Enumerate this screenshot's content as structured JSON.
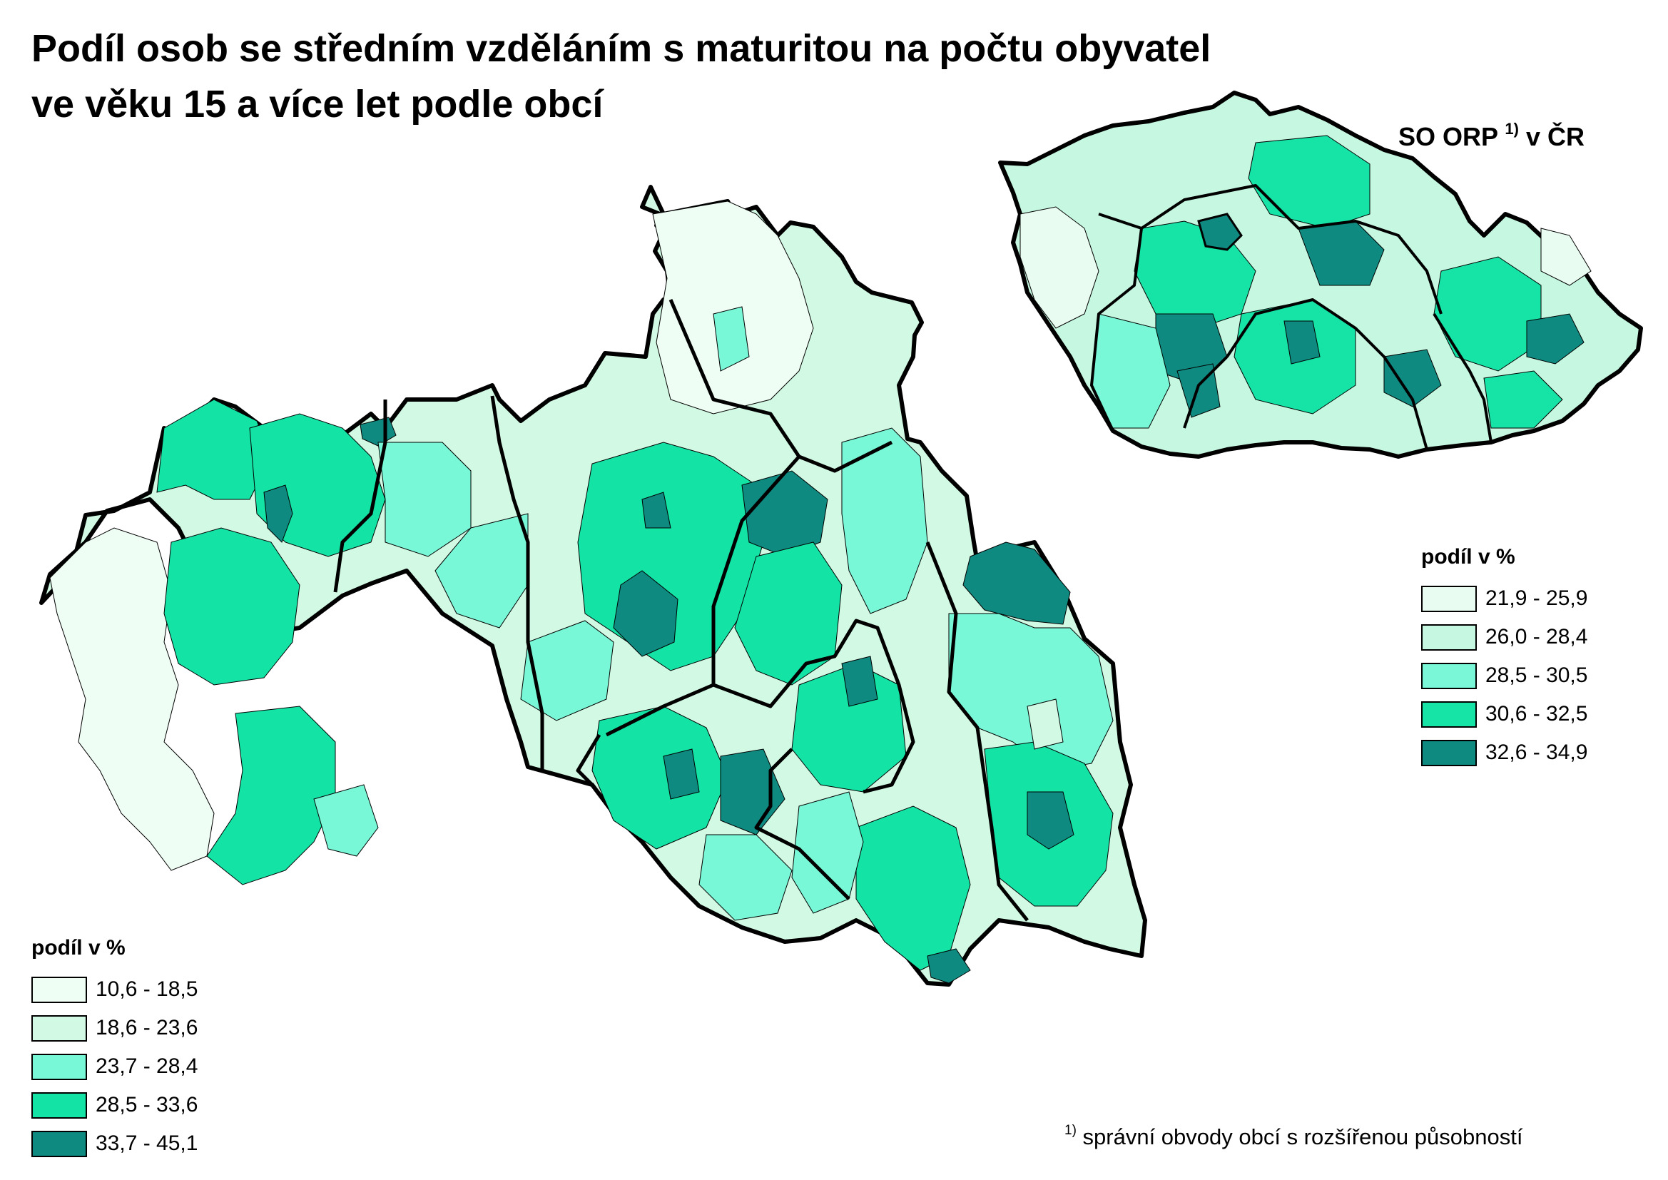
{
  "title": {
    "line1": "Podíl osob se středním vzděláním s maturitou na počtu obyvatel",
    "line2": "ve věku 15 a více let podle obcí"
  },
  "inset": {
    "label_main": "SO ORP ",
    "label_sup": "1)",
    "label_tail": " v ČR"
  },
  "legend_cr": {
    "title": "podíl v %",
    "classes": [
      {
        "label": "21,9 - 25,9",
        "color": "#e9fcf1"
      },
      {
        "label": "26,0 - 28,4",
        "color": "#c6f7e1"
      },
      {
        "label": "28,5 - 30,5",
        "color": "#7af7d6"
      },
      {
        "label": "30,6 - 32,5",
        "color": "#16e3a6"
      },
      {
        "label": "32,6 - 34,9",
        "color": "#0f8a80"
      }
    ]
  },
  "legend_main": {
    "title": "podíl v %",
    "classes": [
      {
        "label": "10,6 - 18,5",
        "color": "#effef4"
      },
      {
        "label": "18,6 - 23,6",
        "color": "#d2f9e3"
      },
      {
        "label": "23,7 - 28,4",
        "color": "#78f8d7"
      },
      {
        "label": "28,5 - 33,6",
        "color": "#14e3a6"
      },
      {
        "label": "33,7 - 45,1",
        "color": "#0f8a80"
      }
    ]
  },
  "footnote": {
    "sup": "1)",
    "text": " správní obvody obcí s rozšířenou působností"
  }
}
